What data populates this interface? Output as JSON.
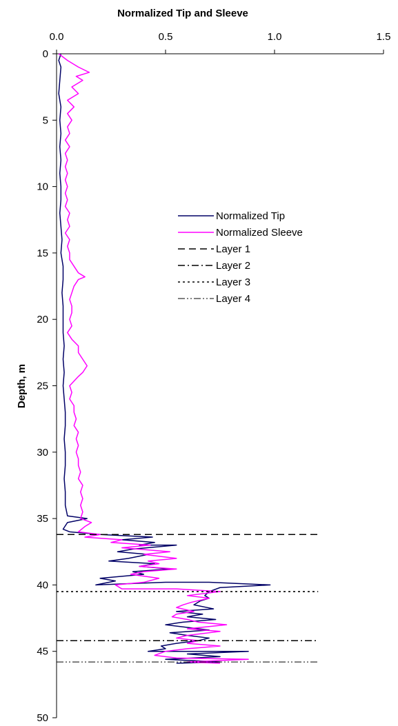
{
  "chart_data": {
    "type": "line",
    "title": "Normalized Tip and Sleeve",
    "xlabel": "",
    "ylabel": "Depth, m",
    "xlim": [
      0,
      1.5
    ],
    "ylim": [
      0,
      50
    ],
    "y_inverted": true,
    "x_axis_position": "top",
    "x_ticks": [
      "0.0",
      "0.5",
      "1.0",
      "1.5"
    ],
    "y_ticks": [
      "0",
      "5",
      "10",
      "15",
      "20",
      "25",
      "30",
      "35",
      "40",
      "45",
      "50"
    ],
    "grid": false,
    "legend_position": "center-right",
    "series": [
      {
        "name": "Normalized Tip",
        "color": "#000066",
        "style": "solid",
        "points": [
          [
            0.02,
            0
          ],
          [
            0.01,
            0.5
          ],
          [
            0.02,
            1
          ],
          [
            0.015,
            2
          ],
          [
            0.01,
            3
          ],
          [
            0.02,
            4
          ],
          [
            0.015,
            5
          ],
          [
            0.02,
            6
          ],
          [
            0.015,
            7
          ],
          [
            0.02,
            8
          ],
          [
            0.015,
            9
          ],
          [
            0.02,
            10
          ],
          [
            0.02,
            11
          ],
          [
            0.015,
            12
          ],
          [
            0.02,
            13
          ],
          [
            0.025,
            14
          ],
          [
            0.02,
            15
          ],
          [
            0.03,
            16
          ],
          [
            0.03,
            17
          ],
          [
            0.025,
            18
          ],
          [
            0.03,
            19
          ],
          [
            0.03,
            20
          ],
          [
            0.03,
            21
          ],
          [
            0.035,
            22
          ],
          [
            0.03,
            23
          ],
          [
            0.035,
            24
          ],
          [
            0.03,
            25
          ],
          [
            0.035,
            26
          ],
          [
            0.04,
            27
          ],
          [
            0.04,
            28
          ],
          [
            0.035,
            29
          ],
          [
            0.04,
            30
          ],
          [
            0.04,
            31
          ],
          [
            0.035,
            32
          ],
          [
            0.04,
            33
          ],
          [
            0.04,
            34
          ],
          [
            0.05,
            34.8
          ],
          [
            0.14,
            35
          ],
          [
            0.05,
            35.3
          ],
          [
            0.03,
            35.8
          ],
          [
            0.06,
            36
          ],
          [
            0.2,
            36.2
          ],
          [
            0.44,
            36.4
          ],
          [
            0.3,
            36.6
          ],
          [
            0.45,
            36.8
          ],
          [
            0.38,
            37
          ],
          [
            0.55,
            37
          ],
          [
            0.35,
            37.3
          ],
          [
            0.28,
            37.5
          ],
          [
            0.42,
            37.7
          ],
          [
            0.33,
            38
          ],
          [
            0.24,
            38.2
          ],
          [
            0.45,
            38.4
          ],
          [
            0.38,
            38.6
          ],
          [
            0.52,
            38.8
          ],
          [
            0.35,
            39
          ],
          [
            0.4,
            39.2
          ],
          [
            0.2,
            39.5
          ],
          [
            0.27,
            39.7
          ],
          [
            0.18,
            40
          ],
          [
            0.5,
            39.8
          ],
          [
            0.7,
            39.8
          ],
          [
            0.98,
            40
          ],
          [
            0.75,
            40.2
          ],
          [
            0.7,
            40.5
          ],
          [
            0.68,
            40.8
          ],
          [
            0.7,
            41
          ],
          [
            0.66,
            41.2
          ],
          [
            0.63,
            41.5
          ],
          [
            0.72,
            41.8
          ],
          [
            0.55,
            42
          ],
          [
            0.67,
            42.2
          ],
          [
            0.6,
            42.4
          ],
          [
            0.73,
            42.6
          ],
          [
            0.58,
            42.8
          ],
          [
            0.5,
            43
          ],
          [
            0.6,
            43.2
          ],
          [
            0.7,
            43.4
          ],
          [
            0.52,
            43.6
          ],
          [
            0.6,
            43.8
          ],
          [
            0.7,
            44
          ],
          [
            0.65,
            44.2
          ],
          [
            0.55,
            44.4
          ],
          [
            0.48,
            44.6
          ],
          [
            0.5,
            44.8
          ],
          [
            0.42,
            45
          ],
          [
            0.88,
            45
          ],
          [
            0.6,
            45.2
          ],
          [
            0.75,
            45.4
          ],
          [
            0.5,
            45.6
          ],
          [
            0.75,
            45.8
          ],
          [
            0.55,
            45.9
          ]
        ]
      },
      {
        "name": "Normalized Sleeve",
        "color": "#ff00ff",
        "style": "solid",
        "points": [
          [
            0.01,
            0
          ],
          [
            0.05,
            0.5
          ],
          [
            0.1,
            1
          ],
          [
            0.15,
            1.4
          ],
          [
            0.09,
            1.7
          ],
          [
            0.12,
            2
          ],
          [
            0.07,
            2.5
          ],
          [
            0.1,
            3
          ],
          [
            0.05,
            3.5
          ],
          [
            0.08,
            4
          ],
          [
            0.05,
            4.5
          ],
          [
            0.07,
            5
          ],
          [
            0.05,
            5.5
          ],
          [
            0.06,
            6
          ],
          [
            0.04,
            6.5
          ],
          [
            0.06,
            7
          ],
          [
            0.04,
            7.5
          ],
          [
            0.05,
            8
          ],
          [
            0.04,
            8.5
          ],
          [
            0.05,
            9
          ],
          [
            0.04,
            9.5
          ],
          [
            0.05,
            10
          ],
          [
            0.04,
            10.5
          ],
          [
            0.05,
            11
          ],
          [
            0.04,
            11.5
          ],
          [
            0.06,
            12
          ],
          [
            0.05,
            12.5
          ],
          [
            0.06,
            13
          ],
          [
            0.04,
            13.5
          ],
          [
            0.06,
            14
          ],
          [
            0.05,
            14.5
          ],
          [
            0.06,
            15
          ],
          [
            0.06,
            15.5
          ],
          [
            0.08,
            16
          ],
          [
            0.1,
            16.5
          ],
          [
            0.13,
            16.8
          ],
          [
            0.1,
            17
          ],
          [
            0.08,
            17.5
          ],
          [
            0.07,
            18
          ],
          [
            0.06,
            18.5
          ],
          [
            0.07,
            19
          ],
          [
            0.07,
            19.5
          ],
          [
            0.06,
            20
          ],
          [
            0.07,
            20.5
          ],
          [
            0.05,
            21
          ],
          [
            0.07,
            21.5
          ],
          [
            0.1,
            22
          ],
          [
            0.1,
            22.5
          ],
          [
            0.12,
            23
          ],
          [
            0.14,
            23.5
          ],
          [
            0.12,
            24
          ],
          [
            0.1,
            24.3
          ],
          [
            0.06,
            25
          ],
          [
            0.07,
            25.5
          ],
          [
            0.06,
            26
          ],
          [
            0.08,
            26.5
          ],
          [
            0.08,
            27
          ],
          [
            0.09,
            27.5
          ],
          [
            0.08,
            28
          ],
          [
            0.1,
            28.5
          ],
          [
            0.09,
            29
          ],
          [
            0.1,
            29.5
          ],
          [
            0.09,
            30
          ],
          [
            0.1,
            30.5
          ],
          [
            0.1,
            31
          ],
          [
            0.11,
            31.5
          ],
          [
            0.1,
            32
          ],
          [
            0.12,
            32.5
          ],
          [
            0.11,
            33
          ],
          [
            0.12,
            33.5
          ],
          [
            0.11,
            34
          ],
          [
            0.12,
            34.5
          ],
          [
            0.11,
            35
          ],
          [
            0.16,
            35.3
          ],
          [
            0.13,
            35.6
          ],
          [
            0.1,
            36
          ],
          [
            0.2,
            36.2
          ],
          [
            0.13,
            36.4
          ],
          [
            0.3,
            36.6
          ],
          [
            0.25,
            36.8
          ],
          [
            0.43,
            37
          ],
          [
            0.3,
            37.2
          ],
          [
            0.52,
            37.5
          ],
          [
            0.4,
            37.7
          ],
          [
            0.55,
            38
          ],
          [
            0.42,
            38.2
          ],
          [
            0.47,
            38.4
          ],
          [
            0.38,
            38.6
          ],
          [
            0.55,
            38.8
          ],
          [
            0.4,
            39
          ],
          [
            0.34,
            39.2
          ],
          [
            0.47,
            39.5
          ],
          [
            0.4,
            39.8
          ],
          [
            0.27,
            40
          ],
          [
            0.3,
            40.3
          ],
          [
            0.55,
            40.3
          ],
          [
            0.75,
            40.5
          ],
          [
            0.6,
            40.8
          ],
          [
            0.7,
            41
          ],
          [
            0.62,
            41.3
          ],
          [
            0.58,
            41.5
          ],
          [
            0.55,
            41.7
          ],
          [
            0.63,
            42
          ],
          [
            0.55,
            42.2
          ],
          [
            0.53,
            42.4
          ],
          [
            0.6,
            42.6
          ],
          [
            0.65,
            42.8
          ],
          [
            0.78,
            43
          ],
          [
            0.6,
            43.3
          ],
          [
            0.75,
            43.5
          ],
          [
            0.6,
            43.8
          ],
          [
            0.55,
            44
          ],
          [
            0.65,
            44.2
          ],
          [
            0.6,
            44.4
          ],
          [
            0.75,
            44.6
          ],
          [
            0.6,
            44.8
          ],
          [
            0.5,
            45
          ],
          [
            0.45,
            45.3
          ],
          [
            0.55,
            45.5
          ],
          [
            0.88,
            45.6
          ],
          [
            0.6,
            45.8
          ],
          [
            0.75,
            45.9
          ]
        ]
      },
      {
        "name": "Layer 1",
        "color": "#000000",
        "style": "dash",
        "points": [
          [
            0,
            36.2
          ],
          [
            1.2,
            36.2
          ]
        ]
      },
      {
        "name": "Layer 2",
        "color": "#000000",
        "style": "dashdot",
        "points": [
          [
            0,
            44.2
          ],
          [
            1.2,
            44.2
          ]
        ]
      },
      {
        "name": "Layer 3",
        "color": "#000000",
        "style": "dot",
        "points": [
          [
            0,
            40.5
          ],
          [
            1.2,
            40.5
          ]
        ]
      },
      {
        "name": "Layer 4",
        "color": "#000000",
        "style": "dashdotdot",
        "points": [
          [
            0,
            45.8
          ],
          [
            1.2,
            45.8
          ]
        ]
      }
    ]
  }
}
